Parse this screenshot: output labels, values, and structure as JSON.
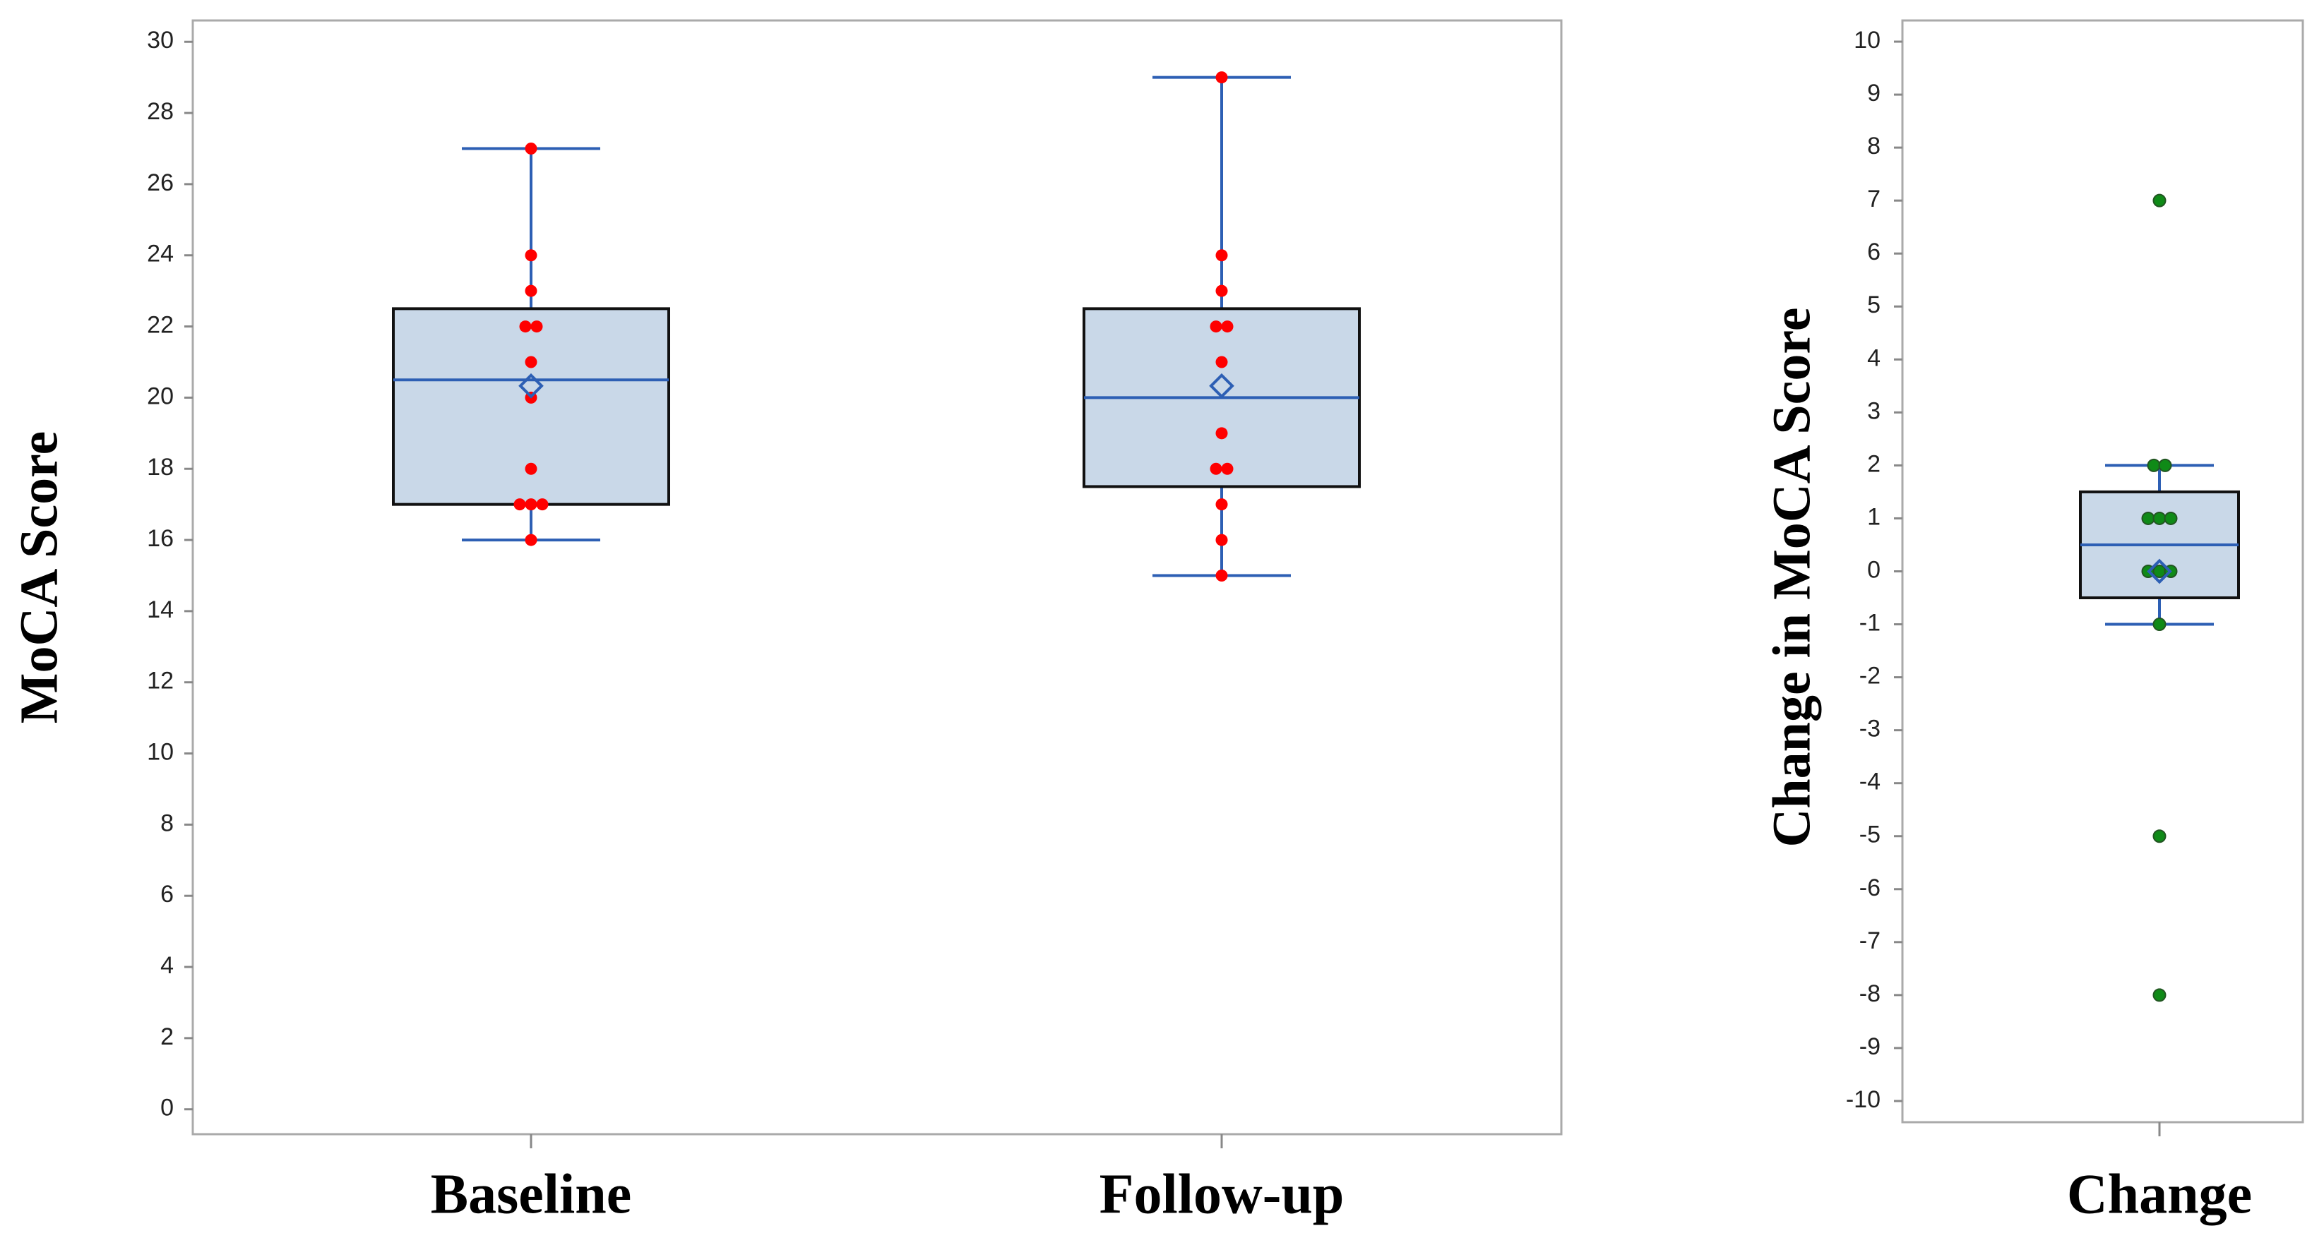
{
  "chart_data": [
    {
      "type": "box",
      "y_label": "MoCA Score",
      "categories": [
        "Baseline",
        "Follow-up"
      ],
      "ylim": [
        -0.7,
        30.6
      ],
      "yticks": [
        0,
        2,
        4,
        6,
        8,
        10,
        12,
        14,
        16,
        18,
        20,
        22,
        24,
        26,
        28,
        30
      ],
      "box_color": "#c9d8e8",
      "line_color": "#2d5fb4",
      "point_color": "#ff0000",
      "boxes": [
        {
          "whisker_low": 16,
          "q1": 17,
          "median": 20.5,
          "q3": 22.5,
          "whisker_high": 27,
          "mean": 20.33,
          "points": [
            27,
            24,
            23,
            22,
            22,
            21,
            20,
            18,
            17,
            17,
            17,
            16
          ]
        },
        {
          "whisker_low": 15,
          "q1": 17.5,
          "median": 20,
          "q3": 22.5,
          "whisker_high": 29,
          "mean": 20.33,
          "points": [
            29,
            24,
            23,
            22,
            22,
            21,
            19,
            18,
            18,
            17,
            16,
            15
          ]
        }
      ]
    },
    {
      "type": "box",
      "y_label": "Change in MoCA Score",
      "categories": [
        "Change"
      ],
      "ylim": [
        -10.4,
        10.4
      ],
      "yticks": [
        -10,
        -9,
        -8,
        -7,
        -6,
        -5,
        -4,
        -3,
        -2,
        -1,
        0,
        1,
        2,
        3,
        4,
        5,
        6,
        7,
        8,
        9,
        10
      ],
      "box_color": "#c9d8e8",
      "line_color": "#2d5fb4",
      "point_color": "#0f8a17",
      "boxes": [
        {
          "whisker_low": -1,
          "q1": -0.5,
          "median": 0.5,
          "q3": 1.5,
          "whisker_high": 2,
          "mean": 0,
          "points": [
            7,
            2,
            2,
            1,
            1,
            1,
            0,
            0,
            0,
            -1,
            -5,
            -8
          ]
        }
      ]
    }
  ]
}
